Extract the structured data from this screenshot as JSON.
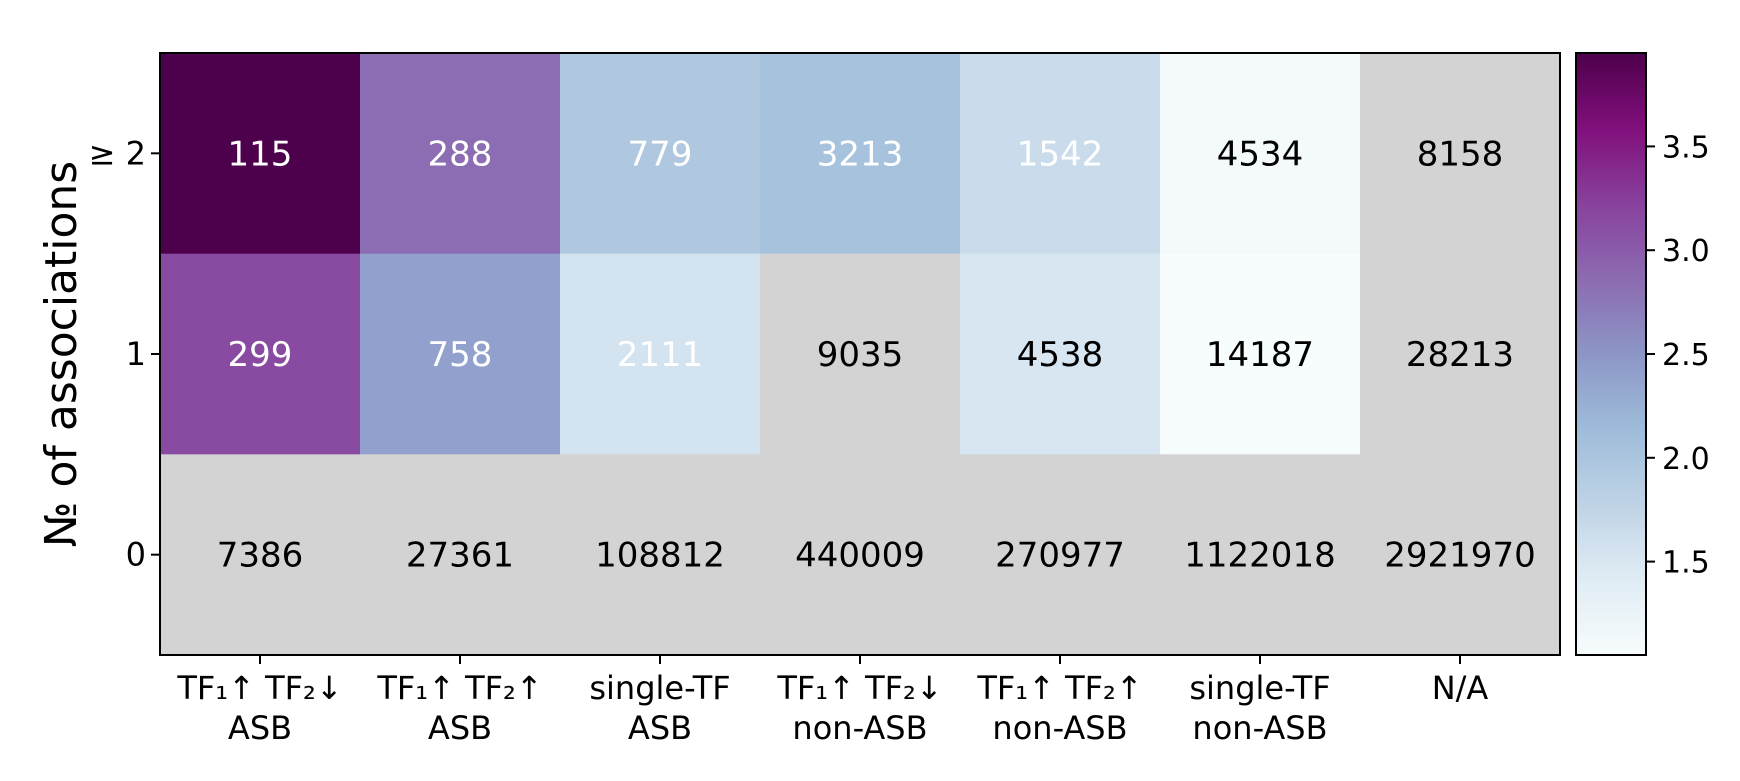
{
  "chart_data": {
    "type": "heatmap",
    "xlabel": "",
    "ylabel": "№ of associations",
    "x_categories": [
      [
        "TF₁↑ TF₂↓",
        "ASB"
      ],
      [
        "TF₁↑ TF₂↑",
        "ASB"
      ],
      [
        "single-TF",
        "ASB"
      ],
      [
        "TF₁↑ TF₂↓",
        "non-ASB"
      ],
      [
        "TF₁↑ TF₂↑",
        "non-ASB"
      ],
      [
        "single-TF",
        "non-ASB"
      ],
      [
        "N/A"
      ]
    ],
    "y_categories": [
      "≥ 2",
      "1",
      "0"
    ],
    "cell_values": [
      [
        115,
        288,
        779,
        3213,
        1542,
        4534,
        8158
      ],
      [
        299,
        758,
        2111,
        9035,
        4538,
        14187,
        28213
      ],
      [
        7386,
        27361,
        108812,
        440009,
        270977,
        1122018,
        2921970
      ]
    ],
    "color_values": [
      [
        3.95,
        2.85,
        1.95,
        2.05,
        1.65,
        1.1,
        null
      ],
      [
        3.15,
        2.4,
        1.55,
        null,
        1.5,
        1.05,
        null
      ],
      [
        null,
        null,
        null,
        null,
        null,
        null,
        null
      ]
    ],
    "colorbar": {
      "range": [
        1.05,
        3.95
      ],
      "ticks": [
        1.5,
        2.0,
        2.5,
        3.0,
        3.5
      ],
      "tick_labels": [
        "1.5",
        "2.0",
        "2.5",
        "3.0",
        "3.5"
      ],
      "colormap": "BuPu",
      "stops": [
        "#f7fcfd",
        "#e0ecf4",
        "#bfd3e6",
        "#9ebcda",
        "#8c96c6",
        "#8c6bb1",
        "#88419d",
        "#810f7c",
        "#4d004b"
      ]
    },
    "na_color": "#d3d3d3",
    "white_text_cells": [
      [
        0,
        0
      ],
      [
        0,
        1
      ],
      [
        0,
        2
      ],
      [
        0,
        3
      ],
      [
        0,
        4
      ],
      [
        1,
        0
      ],
      [
        1,
        1
      ],
      [
        1,
        2
      ]
    ]
  }
}
